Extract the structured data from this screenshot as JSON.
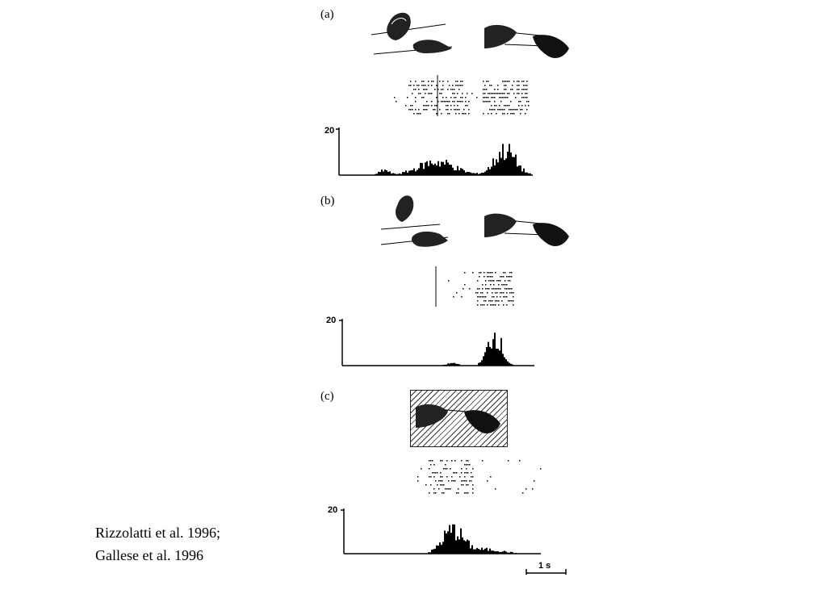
{
  "panels": [
    {
      "label": "(a)",
      "y_tick": "20"
    },
    {
      "label": "(b)",
      "y_tick": "20"
    },
    {
      "label": "(c)",
      "y_tick": "20"
    }
  ],
  "scale_bar": {
    "label": "1 s"
  },
  "citation": {
    "line1": "Rizzolatti et al. 1996;",
    "line2": "Gallese et al. 1996"
  },
  "icons": [
    "hand-grasping-food-icon",
    "hand-pointing-icon",
    "monkey-hand-grasp-icon",
    "hatched-screen-icon"
  ]
}
